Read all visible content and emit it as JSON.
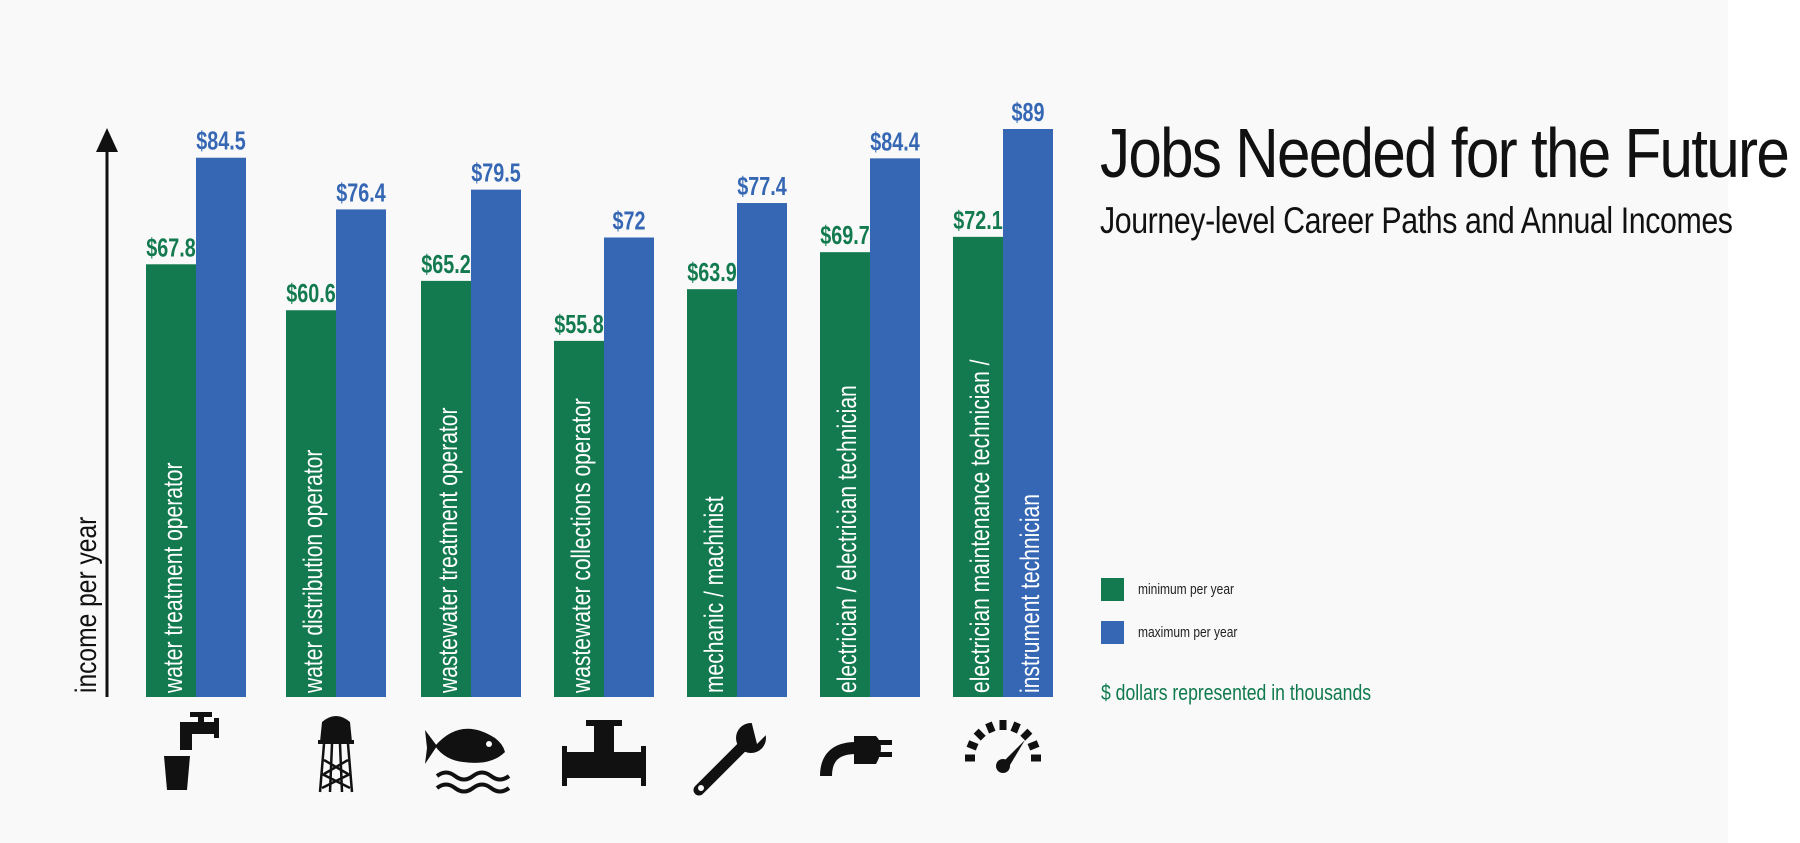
{
  "header": {
    "title": "Jobs Needed for the Future",
    "subtitle": "Journey-level Career Paths and Annual Incomes"
  },
  "colors": {
    "minimum": "#127a4e",
    "maximum": "#3567b4",
    "axis": "#111111",
    "icon": "#111111"
  },
  "legend": {
    "min_label": "minimum per year",
    "max_label": "maximum per year",
    "note": "$ dollars represented in thousands"
  },
  "chart_data": {
    "type": "bar",
    "ylabel": "income per year",
    "value_prefix": "$",
    "categories": [
      [
        "water treatment operator"
      ],
      [
        "water distribution operator"
      ],
      [
        "wastewater treatment operator"
      ],
      [
        "wastewater collections operator"
      ],
      [
        "mechanic / machinist"
      ],
      [
        "electrician / electrician technician"
      ],
      [
        "electrician maintenance technician /",
        "instrument technician"
      ]
    ],
    "series": [
      {
        "name": "minimum per year",
        "values": [
          67.8,
          60.6,
          65.2,
          55.8,
          63.9,
          69.7,
          72.1
        ]
      },
      {
        "name": "maximum per year",
        "values": [
          84.5,
          76.4,
          79.5,
          72,
          77.4,
          84.4,
          89
        ]
      }
    ],
    "icons": [
      "faucet-icon",
      "water-tower-icon",
      "fish-icon",
      "pipe-icon",
      "wrench-icon",
      "plug-icon",
      "gauge-icon"
    ],
    "ylim": [
      0,
      100
    ],
    "grid": false,
    "legend_position": "right"
  }
}
